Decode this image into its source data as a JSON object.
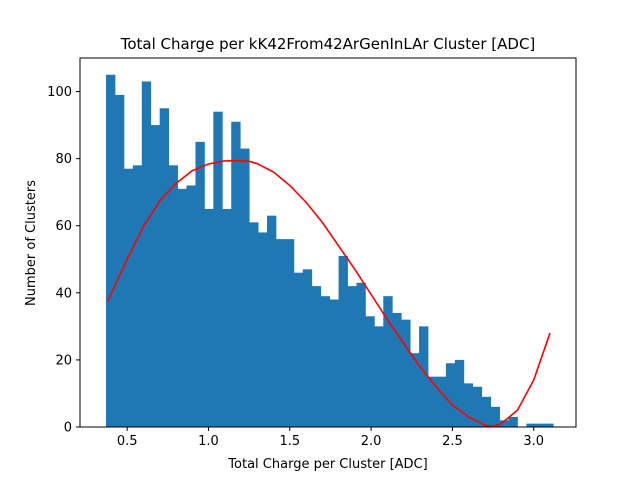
{
  "chart_data": {
    "type": "bar",
    "title": "Total Charge per kK42From42ArGenInLAr Cluster [ADC]",
    "xlabel": "Total Charge per Cluster [ADC]",
    "ylabel": "Number of Clusters",
    "xlim": [
      0.21,
      3.26
    ],
    "ylim": [
      0,
      110
    ],
    "xticks": [
      0.5,
      1.0,
      1.5,
      2.0,
      2.5,
      3.0
    ],
    "xtick_labels": [
      "0.5",
      "1.0",
      "1.5",
      "2.0",
      "2.5",
      "3.0"
    ],
    "yticks": [
      0,
      20,
      40,
      60,
      80,
      100
    ],
    "ytick_labels": [
      "0",
      "20",
      "40",
      "60",
      "80",
      "100"
    ],
    "grid": false,
    "histogram": {
      "bin_start": 0.37,
      "bin_width": 0.055,
      "counts": [
        105,
        99,
        77,
        78,
        103,
        90,
        95,
        78,
        71,
        72,
        85,
        65,
        94,
        65,
        91,
        83,
        61,
        58,
        63,
        56,
        56,
        46,
        47,
        42,
        39,
        38,
        51,
        42,
        43,
        33,
        30,
        39,
        34,
        32,
        22,
        30,
        15,
        15,
        19,
        20,
        13,
        12,
        9,
        6,
        2,
        3,
        0,
        1,
        1,
        1
      ],
      "color": "#1f77b4"
    },
    "fit_curve": {
      "color": "#ff0000",
      "x": [
        0.38,
        0.5,
        0.6,
        0.7,
        0.8,
        0.9,
        1.0,
        1.1,
        1.2,
        1.25,
        1.3,
        1.4,
        1.5,
        1.6,
        1.7,
        1.8,
        1.9,
        2.0,
        2.1,
        2.2,
        2.3,
        2.4,
        2.5,
        2.6,
        2.7,
        2.75,
        2.8,
        2.9,
        3.0,
        3.1
      ],
      "y": [
        37.5,
        50,
        59.8,
        67.4,
        72.6,
        76.4,
        78.4,
        79.3,
        79.4,
        79.2,
        78.5,
        76,
        72,
        67,
        61,
        54,
        47,
        39.5,
        32,
        25,
        18,
        12,
        6.5,
        3,
        0.5,
        0.2,
        1,
        5,
        14,
        28
      ]
    }
  }
}
